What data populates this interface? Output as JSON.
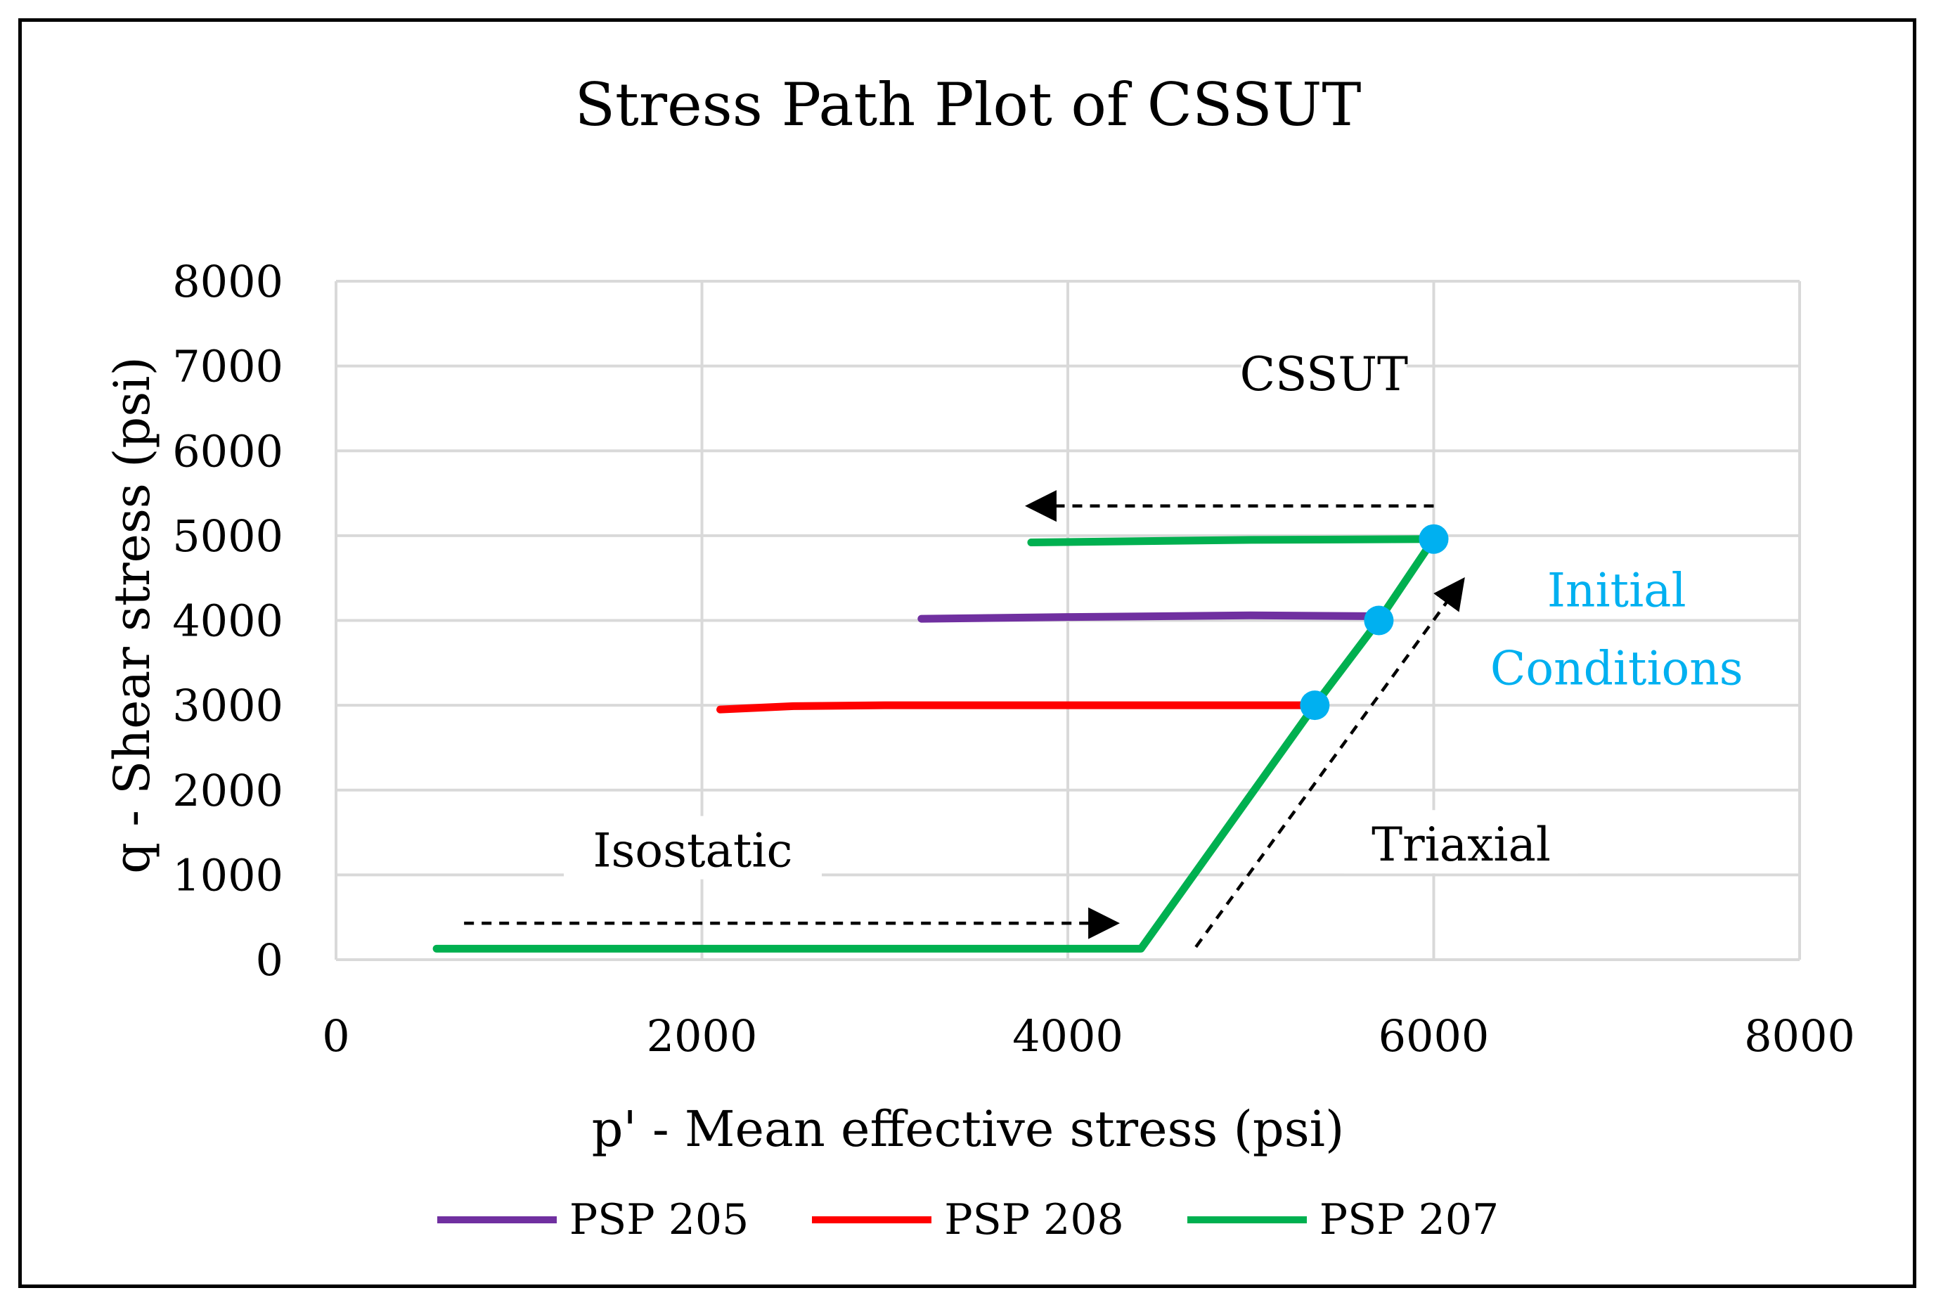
{
  "chart_data": {
    "type": "line",
    "title": "Stress Path Plot of CSSUT",
    "xlabel": "p' - Mean effective stress (psi)",
    "ylabel": "q - Shear stress (psi)",
    "xlim": [
      0,
      8000
    ],
    "ylim": [
      0,
      8000
    ],
    "xticks": [
      0,
      2000,
      4000,
      6000,
      8000
    ],
    "yticks": [
      0,
      1000,
      2000,
      3000,
      4000,
      5000,
      6000,
      7000,
      8000
    ],
    "grid": true,
    "legend_position": "bottom",
    "series": [
      {
        "name": "PSP 205",
        "color": "#7030A0",
        "x": [
          3200,
          4000,
          5000,
          5700
        ],
        "y": [
          4020,
          4040,
          4060,
          4050
        ]
      },
      {
        "name": "PSP 208",
        "color": "#FF0000",
        "x": [
          2100,
          2500,
          3000,
          4000,
          5000,
          5350
        ],
        "y": [
          2950,
          2990,
          3000,
          3000,
          3000,
          3000
        ]
      },
      {
        "name": "PSP 207",
        "color": "#00B050",
        "x": [
          550,
          4400,
          5350,
          5700,
          6000,
          5000,
          3800
        ],
        "y": [
          130,
          130,
          3000,
          4000,
          4960,
          4950,
          4920
        ]
      }
    ],
    "initial_conditions": {
      "color": "#00B0F0",
      "points": [
        {
          "x": 5350,
          "y": 3000
        },
        {
          "x": 5700,
          "y": 4000
        },
        {
          "x": 6000,
          "y": 4960
        }
      ]
    },
    "annotations": [
      {
        "text": "CSSUT",
        "x": 5400,
        "y": 6800
      },
      {
        "text": "Initial",
        "x": 7000,
        "y": 4250,
        "color": "#00B0F0"
      },
      {
        "text": "Conditions",
        "x": 7000,
        "y": 3330,
        "color": "#00B0F0"
      },
      {
        "text": "Isostatic",
        "x": 1950,
        "y": 1180
      },
      {
        "text": "Triaxial",
        "x": 6150,
        "y": 1250
      }
    ],
    "arrows": [
      {
        "name": "cssut-arrow",
        "from": [
          6000,
          5350
        ],
        "to": [
          3800,
          5350
        ]
      },
      {
        "name": "triaxial-arrow",
        "from": [
          4700,
          150
        ],
        "to": [
          6150,
          4450
        ]
      },
      {
        "name": "isostatic-arrow",
        "from": [
          700,
          430
        ],
        "to": [
          4250,
          430
        ]
      }
    ]
  }
}
